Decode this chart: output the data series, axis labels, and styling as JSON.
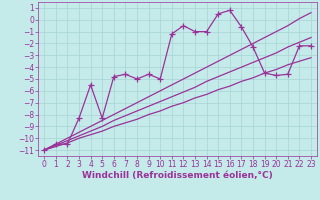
{
  "xlabel": "Windchill (Refroidissement éolien,°C)",
  "background_color": "#c5eaea",
  "grid_color": "#a8d4d4",
  "line_color": "#993399",
  "x_values": [
    0,
    1,
    2,
    3,
    4,
    5,
    6,
    7,
    8,
    9,
    10,
    11,
    12,
    13,
    14,
    15,
    16,
    17,
    18,
    19,
    20,
    21,
    22,
    23
  ],
  "main_y": [
    -11.0,
    -10.5,
    -10.5,
    -8.3,
    -5.5,
    -8.3,
    -4.8,
    -4.6,
    -5.0,
    -4.6,
    -5.0,
    -1.2,
    -0.5,
    -1.0,
    -1.0,
    0.5,
    0.8,
    -0.6,
    -2.3,
    -4.5,
    -4.7,
    -4.6,
    -2.2,
    -2.2
  ],
  "line1_y": [
    -11.0,
    -10.6,
    -10.2,
    -9.8,
    -9.4,
    -9.0,
    -8.5,
    -8.1,
    -7.7,
    -7.3,
    -6.9,
    -6.5,
    -6.1,
    -5.7,
    -5.2,
    -4.8,
    -4.4,
    -4.0,
    -3.6,
    -3.2,
    -2.8,
    -2.3,
    -1.9,
    -1.5
  ],
  "line2_y": [
    -11.0,
    -10.5,
    -10.0,
    -9.5,
    -9.0,
    -8.5,
    -8.0,
    -7.5,
    -7.0,
    -6.5,
    -6.0,
    -5.5,
    -5.0,
    -4.5,
    -4.0,
    -3.5,
    -3.0,
    -2.5,
    -2.0,
    -1.5,
    -1.0,
    -0.5,
    0.1,
    0.6
  ],
  "line3_y": [
    -11.0,
    -10.7,
    -10.4,
    -10.0,
    -9.7,
    -9.4,
    -9.0,
    -8.7,
    -8.4,
    -8.0,
    -7.7,
    -7.3,
    -7.0,
    -6.6,
    -6.3,
    -5.9,
    -5.6,
    -5.2,
    -4.9,
    -4.5,
    -4.2,
    -3.8,
    -3.5,
    -3.2
  ],
  "xlim": [
    -0.5,
    23.5
  ],
  "ylim": [
    -11.5,
    1.5
  ],
  "yticks": [
    1,
    0,
    -1,
    -2,
    -3,
    -4,
    -5,
    -6,
    -7,
    -8,
    -9,
    -10,
    -11
  ],
  "xticks": [
    0,
    1,
    2,
    3,
    4,
    5,
    6,
    7,
    8,
    9,
    10,
    11,
    12,
    13,
    14,
    15,
    16,
    17,
    18,
    19,
    20,
    21,
    22,
    23
  ],
  "font_color": "#993399",
  "xlabel_fontsize": 6.5,
  "tick_fontsize": 5.5,
  "line_width": 0.9,
  "marker_size": 4
}
